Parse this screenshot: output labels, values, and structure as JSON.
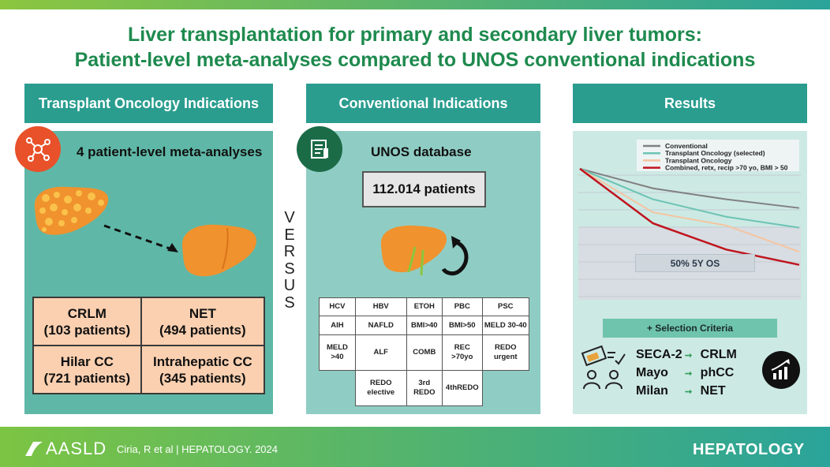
{
  "title": {
    "line1": "Liver transplantation for primary and secondary liver tumors:",
    "line2": "Patient-level meta-analyses compared to UNOS conventional indications"
  },
  "left_panel": {
    "header": "Transplant Oncology Indications",
    "subtitle": "4 patient-level meta-analyses",
    "icon": "molecule-icon",
    "indications": [
      {
        "name": "CRLM",
        "patients": "(103 patients)"
      },
      {
        "name": "NET",
        "patients": "(494 patients)"
      },
      {
        "name": "Hilar CC",
        "patients": "(721 patients)"
      },
      {
        "name": "Intrahepatic CC",
        "patients": "(345 patients)"
      }
    ]
  },
  "versus": [
    "V",
    "E",
    "R",
    "S",
    "U",
    "S"
  ],
  "middle_panel": {
    "header": "Conventional Indications",
    "subtitle": "UNOS database",
    "icon": "document-icon",
    "patients": "112.014 patients",
    "grid": [
      [
        "HCV",
        "HBV",
        "ETOH",
        "PBC",
        "PSC"
      ],
      [
        "AIH",
        "NAFLD",
        "BMI>40",
        "BMI>50",
        "MELD 30-40"
      ],
      [
        "MELD >40",
        "ALF",
        "COMB",
        "REC >70yo",
        "REDO urgent"
      ],
      [
        "",
        "REDO elective",
        "3rd REDO",
        "4thREDO",
        ""
      ]
    ]
  },
  "right_panel": {
    "header": "Results",
    "os_label": "50% 5Y OS",
    "selection_label": "+ Selection Criteria",
    "criteria": [
      {
        "left": "SECA-2",
        "right": "CRLM"
      },
      {
        "left": "Mayo",
        "right": "phCC"
      },
      {
        "left": "Milan",
        "right": "NET"
      }
    ]
  },
  "chart_data": {
    "type": "line",
    "title": "",
    "xlabel": "",
    "ylabel": "",
    "grid": true,
    "legend_position": "top-right",
    "series": [
      {
        "name": "Conventional",
        "color": "#808080",
        "values": [
          100,
          91,
          86,
          82
        ]
      },
      {
        "name": "Transplant  Oncology (selected)",
        "color": "#6cc4b4",
        "values": [
          100,
          86,
          78,
          73
        ]
      },
      {
        "name": "Transplant Oncology",
        "color": "#f5c4a0",
        "values": [
          100,
          80,
          74,
          62
        ]
      },
      {
        "name": "Combined, retx, recip >70 yo, BMI > 50",
        "color": "#c0141e",
        "values": [
          100,
          75,
          63,
          56
        ]
      }
    ],
    "ylim": [
      40,
      105
    ]
  },
  "footer": {
    "logo": "AASLD",
    "citation": "Ciria, R et al  |  HEPATOLOGY. 2024",
    "journal": "HEPATOLOGY"
  },
  "colors": {
    "title_green": "#1e8a4e",
    "teal": "#2a9d8f",
    "peach": "#fbd0b0",
    "orange_liver": "#f08a2a",
    "red_circle": "#e8512a",
    "dark_green_circle": "#1b6b47"
  }
}
